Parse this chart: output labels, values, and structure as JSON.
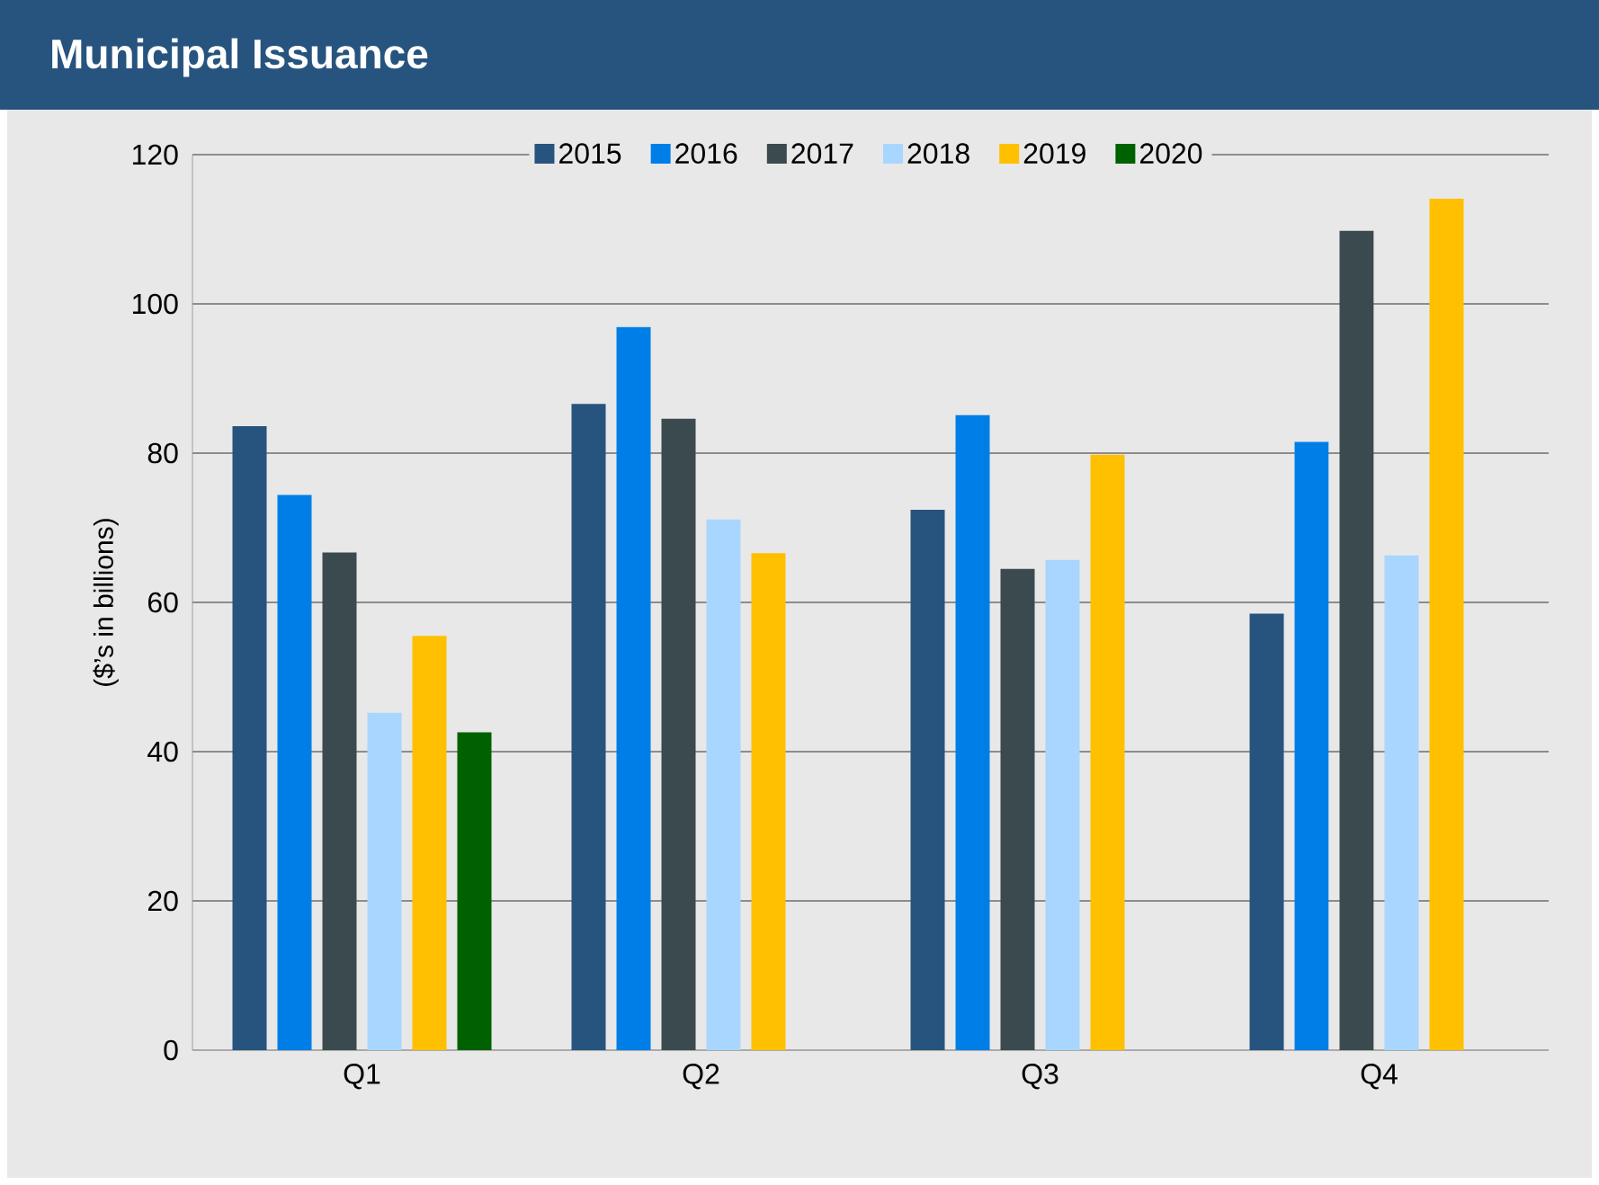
{
  "chart_data": {
    "type": "bar",
    "title": "Municipal Issuance",
    "ylabel": "($’s in billions)",
    "categories": [
      "Q1",
      "Q2",
      "Q3",
      "Q4"
    ],
    "series": [
      {
        "name": "2015",
        "color": "#27547e",
        "values": [
          83.6,
          86.6,
          72.4,
          58.5
        ]
      },
      {
        "name": "2016",
        "color": "#007ee8",
        "values": [
          74.4,
          96.9,
          85.1,
          81.5
        ]
      },
      {
        "name": "2017",
        "color": "#3b4a4e",
        "values": [
          66.7,
          84.6,
          64.5,
          109.8
        ]
      },
      {
        "name": "2018",
        "color": "#a8d6fe",
        "values": [
          45.2,
          71.1,
          65.7,
          66.3
        ]
      },
      {
        "name": "2019",
        "color": "#fec000",
        "values": [
          55.5,
          66.6,
          79.8,
          114.1
        ]
      },
      {
        "name": "2020",
        "color": "#006100",
        "values": [
          42.6,
          null,
          null,
          null
        ]
      }
    ],
    "ylim": [
      0,
      120
    ],
    "yticks": [
      0,
      20,
      40,
      60,
      80,
      100,
      120
    ],
    "grid": "y",
    "legend": "top"
  }
}
